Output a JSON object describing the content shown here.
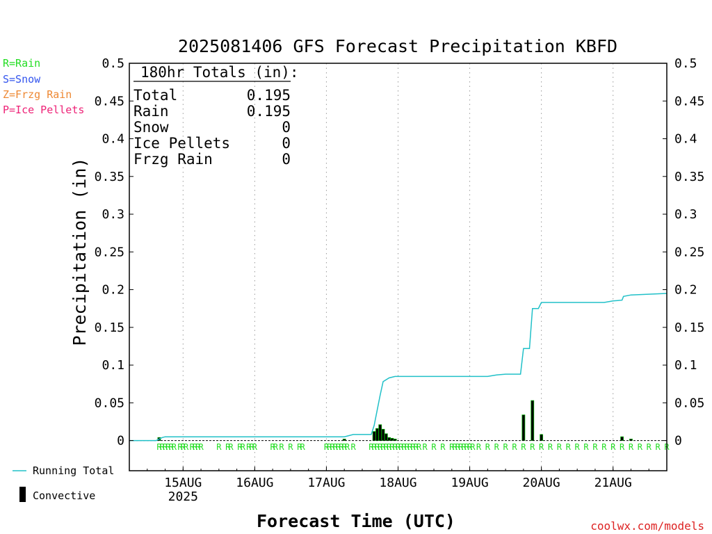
{
  "credit": "coolwx.com/models",
  "ptype_legend": [
    {
      "text": "R=Rain",
      "color": "#22dd22"
    },
    {
      "text": "S=Snow",
      "color": "#3355ee"
    },
    {
      "text": "Z=Frzg Rain",
      "color": "#ee8833"
    },
    {
      "text": "P=Ice Pellets",
      "color": "#ee2277"
    }
  ],
  "series_legend": {
    "running_total": "Running Total",
    "convective": "Convective",
    "running_total_color": "#20c0c8",
    "bar_fill": "#000000",
    "bar_outline": "#00aa00"
  },
  "totals_box": {
    "header": "180hr Totals (in):",
    "rows": [
      {
        "label": "Total",
        "value": "0.195"
      },
      {
        "label": "Rain",
        "value": "0.195"
      },
      {
        "label": "Snow",
        "value": "0"
      },
      {
        "label": "Ice Pellets",
        "value": "0"
      },
      {
        "label": "Frzg Rain",
        "value": "0"
      }
    ]
  },
  "chart_data": {
    "type": "line",
    "title": "2025081406 GFS Forecast Precipitation KBFD",
    "xlabel": "Forecast Time (UTC)",
    "ylabel": "Precipitation (in)",
    "ylim": [
      -0.04,
      0.5
    ],
    "xlim": [
      "2025-08-14T06:00",
      "2025-08-21T18:00"
    ],
    "grid": "vertical dotted at day boundaries",
    "y_ticks": [
      "0",
      "0.05",
      "0.1",
      "0.15",
      "0.2",
      "0.25",
      "0.3",
      "0.35",
      "0.4",
      "0.45",
      "0.5"
    ],
    "x_ticks": [
      {
        "time": "2025-08-15T00:00",
        "label": "15AUG",
        "sublabel": "2025"
      },
      {
        "time": "2025-08-16T00:00",
        "label": "16AUG",
        "sublabel": ""
      },
      {
        "time": "2025-08-17T00:00",
        "label": "17AUG",
        "sublabel": ""
      },
      {
        "time": "2025-08-18T00:00",
        "label": "18AUG",
        "sublabel": ""
      },
      {
        "time": "2025-08-19T00:00",
        "label": "19AUG",
        "sublabel": ""
      },
      {
        "time": "2025-08-20T00:00",
        "label": "20AUG",
        "sublabel": ""
      },
      {
        "time": "2025-08-21T00:00",
        "label": "21AUG",
        "sublabel": ""
      }
    ],
    "series": [
      {
        "name": "Running Total",
        "points": [
          [
            "2025-08-14T06:00",
            0
          ],
          [
            "2025-08-14T15:00",
            0
          ],
          [
            "2025-08-14T17:00",
            0.004
          ],
          [
            "2025-08-14T18:00",
            0.005
          ],
          [
            "2025-08-17T06:00",
            0.005
          ],
          [
            "2025-08-17T09:00",
            0.008
          ],
          [
            "2025-08-17T15:00",
            0.008
          ],
          [
            "2025-08-17T16:00",
            0.02
          ],
          [
            "2025-08-17T17:00",
            0.04
          ],
          [
            "2025-08-17T18:00",
            0.06
          ],
          [
            "2025-08-17T19:00",
            0.078
          ],
          [
            "2025-08-17T21:00",
            0.083
          ],
          [
            "2025-08-17T23:00",
            0.085
          ],
          [
            "2025-08-19T06:00",
            0.085
          ],
          [
            "2025-08-19T09:00",
            0.087
          ],
          [
            "2025-08-19T12:00",
            0.088
          ],
          [
            "2025-08-19T17:00",
            0.088
          ],
          [
            "2025-08-19T18:00",
            0.122
          ],
          [
            "2025-08-19T20:00",
            0.122
          ],
          [
            "2025-08-19T21:00",
            0.175
          ],
          [
            "2025-08-19T23:00",
            0.175
          ],
          [
            "2025-08-20T00:00",
            0.183
          ],
          [
            "2025-08-20T21:00",
            0.183
          ],
          [
            "2025-08-21T00:00",
            0.185
          ],
          [
            "2025-08-21T03:00",
            0.186
          ],
          [
            "2025-08-21T03:30",
            0.191
          ],
          [
            "2025-08-21T06:00",
            0.193
          ],
          [
            "2025-08-21T18:00",
            0.195
          ]
        ]
      },
      {
        "name": "Convective",
        "type": "bar",
        "bars": [
          [
            "2025-08-14T16:00",
            0.004
          ],
          [
            "2025-08-17T06:00",
            0.002
          ],
          [
            "2025-08-17T16:00",
            0.012
          ],
          [
            "2025-08-17T17:00",
            0.016
          ],
          [
            "2025-08-17T18:00",
            0.021
          ],
          [
            "2025-08-17T19:00",
            0.015
          ],
          [
            "2025-08-17T20:00",
            0.009
          ],
          [
            "2025-08-17T21:00",
            0.004
          ],
          [
            "2025-08-17T22:00",
            0.003
          ],
          [
            "2025-08-17T23:00",
            0.002
          ],
          [
            "2025-08-19T18:00",
            0.034
          ],
          [
            "2025-08-19T21:00",
            0.053
          ],
          [
            "2025-08-20T00:00",
            0.008
          ],
          [
            "2025-08-21T03:00",
            0.005
          ],
          [
            "2025-08-21T06:00",
            0.002
          ]
        ]
      }
    ],
    "ptype_marks": {
      "letter": "R",
      "times": [
        "2025-08-14T16:00",
        "2025-08-14T17:00",
        "2025-08-14T18:00",
        "2025-08-14T19:00",
        "2025-08-14T20:00",
        "2025-08-14T21:00",
        "2025-08-14T23:00",
        "2025-08-15T00:00",
        "2025-08-15T01:00",
        "2025-08-15T03:00",
        "2025-08-15T04:00",
        "2025-08-15T05:00",
        "2025-08-15T06:00",
        "2025-08-15T12:00",
        "2025-08-15T15:00",
        "2025-08-15T16:00",
        "2025-08-15T19:00",
        "2025-08-15T20:00",
        "2025-08-15T22:00",
        "2025-08-15T23:00",
        "2025-08-16T00:00",
        "2025-08-16T06:00",
        "2025-08-16T07:00",
        "2025-08-16T09:00",
        "2025-08-16T12:00",
        "2025-08-16T15:00",
        "2025-08-16T16:00",
        "2025-08-17T00:00",
        "2025-08-17T01:00",
        "2025-08-17T02:00",
        "2025-08-17T03:00",
        "2025-08-17T04:00",
        "2025-08-17T05:00",
        "2025-08-17T06:00",
        "2025-08-17T07:00",
        "2025-08-17T09:00",
        "2025-08-17T15:00",
        "2025-08-17T16:00",
        "2025-08-17T17:00",
        "2025-08-17T18:00",
        "2025-08-17T19:00",
        "2025-08-17T20:00",
        "2025-08-17T21:00",
        "2025-08-17T22:00",
        "2025-08-17T23:00",
        "2025-08-18T00:00",
        "2025-08-18T01:00",
        "2025-08-18T02:00",
        "2025-08-18T03:00",
        "2025-08-18T04:00",
        "2025-08-18T05:00",
        "2025-08-18T06:00",
        "2025-08-18T07:00",
        "2025-08-18T09:00",
        "2025-08-18T12:00",
        "2025-08-18T15:00",
        "2025-08-18T18:00",
        "2025-08-18T19:00",
        "2025-08-18T20:00",
        "2025-08-18T21:00",
        "2025-08-18T22:00",
        "2025-08-18T23:00",
        "2025-08-19T00:00",
        "2025-08-19T01:00",
        "2025-08-19T03:00",
        "2025-08-19T06:00",
        "2025-08-19T09:00",
        "2025-08-19T12:00",
        "2025-08-19T15:00",
        "2025-08-19T18:00",
        "2025-08-19T21:00",
        "2025-08-20T00:00",
        "2025-08-20T03:00",
        "2025-08-20T06:00",
        "2025-08-20T09:00",
        "2025-08-20T12:00",
        "2025-08-20T15:00",
        "2025-08-20T18:00",
        "2025-08-20T21:00",
        "2025-08-21T00:00",
        "2025-08-21T03:00",
        "2025-08-21T06:00",
        "2025-08-21T09:00",
        "2025-08-21T12:00",
        "2025-08-21T15:00",
        "2025-08-21T18:00"
      ]
    }
  }
}
